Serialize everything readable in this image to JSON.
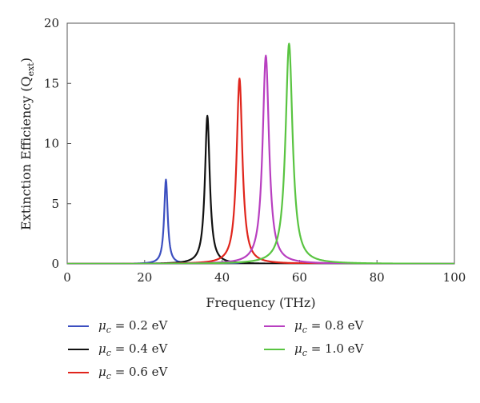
{
  "chart_data": {
    "type": "line",
    "xlabel": "Frequency (THz)",
    "ylabel": "Extinction Efficiency (Q_ext)",
    "ylabel_parts": {
      "main": "Extinction Efficiency (Q",
      "sub": "ext",
      "close": ")"
    },
    "xlim": [
      0,
      100
    ],
    "ylim": [
      0,
      20
    ],
    "xticks": [
      0,
      20,
      40,
      60,
      80,
      100
    ],
    "yticks": [
      0,
      5,
      10,
      15,
      20
    ],
    "grid": false,
    "legend_position": "bottom",
    "series": [
      {
        "name": "μc = 0.2 eV",
        "label_mu": "μ",
        "label_sub": "c",
        "label_rest": " = 0.2 eV",
        "color": "#3c4fc0",
        "peak_x": 25.5,
        "peak_y": 7.0,
        "hwhm": 0.55,
        "legend_col": 0,
        "legend_row": 0
      },
      {
        "name": "μc = 0.4 eV",
        "label_mu": "μ",
        "label_sub": "c",
        "label_rest": " = 0.4 eV",
        "color": "#111111",
        "peak_x": 36.2,
        "peak_y": 12.3,
        "hwhm": 0.75,
        "legend_col": 0,
        "legend_row": 1
      },
      {
        "name": "μc = 0.6 eV",
        "label_mu": "μ",
        "label_sub": "c",
        "label_rest": " = 0.6 eV",
        "color": "#e0251c",
        "peak_x": 44.5,
        "peak_y": 15.4,
        "hwhm": 0.9,
        "legend_col": 0,
        "legend_row": 2
      },
      {
        "name": "μc = 0.8 eV",
        "label_mu": "μ",
        "label_sub": "c",
        "label_rest": " = 0.8 eV",
        "color": "#b83fc0",
        "peak_x": 51.3,
        "peak_y": 17.3,
        "hwhm": 1.0,
        "legend_col": 1,
        "legend_row": 0
      },
      {
        "name": "μc = 1.0 eV",
        "label_mu": "μ",
        "label_sub": "c",
        "label_rest": " = 1.0 eV",
        "color": "#59c441",
        "peak_x": 57.3,
        "peak_y": 18.3,
        "hwhm": 1.1,
        "legend_col": 1,
        "legend_row": 1
      }
    ]
  }
}
